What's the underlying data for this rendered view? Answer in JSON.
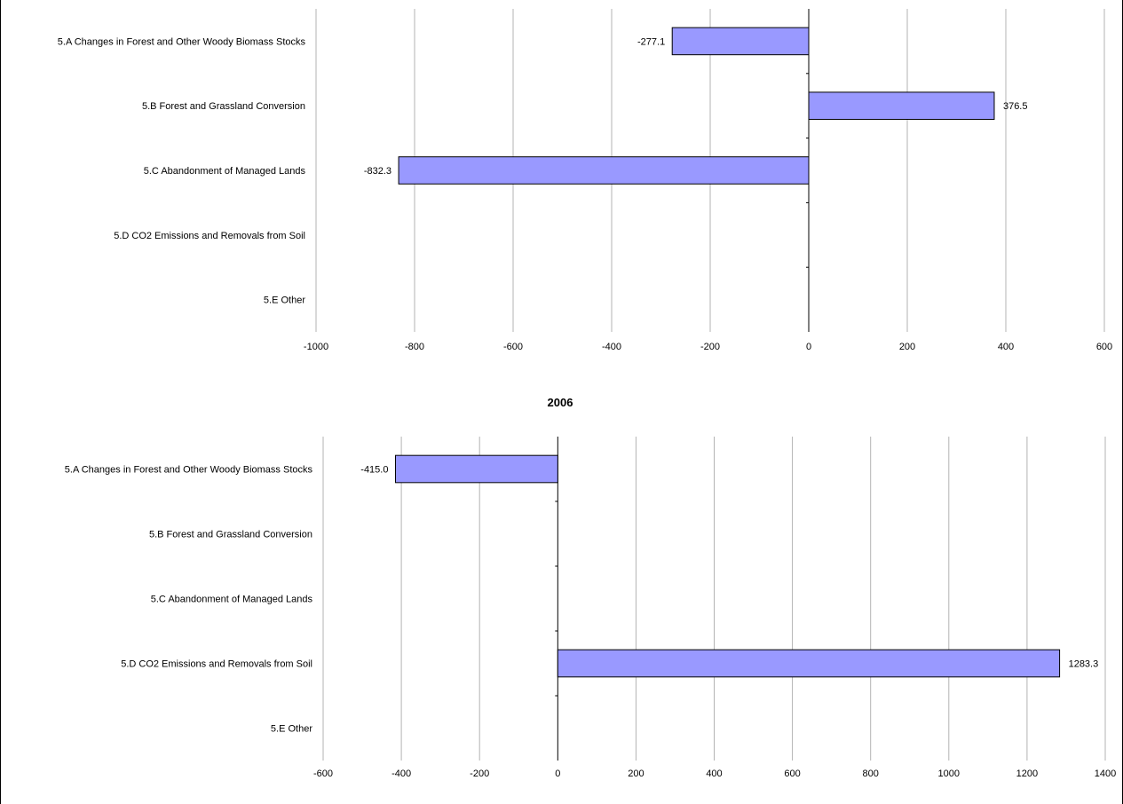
{
  "chart_data": [
    {
      "type": "bar",
      "orientation": "horizontal",
      "title": "",
      "categories": [
        "5.A Changes in Forest and Other Woody Biomass Stocks",
        "5.B Forest and Grassland Conversion",
        "5.C Abandonment of Managed Lands",
        "5.D CO2 Emissions and Removals from Soil",
        "5.E Other"
      ],
      "values": [
        -277.1,
        376.5,
        -832.3,
        null,
        null
      ],
      "data_labels": [
        "-277.1",
        "376.5",
        "-832.3",
        "",
        ""
      ],
      "xlim": [
        -1000,
        600
      ],
      "ticks": [
        -1000,
        -800,
        -600,
        -400,
        -200,
        0,
        200,
        400,
        600
      ],
      "grid": true,
      "bar_color": "#9999ff"
    },
    {
      "type": "bar",
      "orientation": "horizontal",
      "title": "2006",
      "categories": [
        "5.A Changes in Forest and Other Woody Biomass Stocks",
        "5.B Forest and Grassland Conversion",
        "5.C Abandonment of Managed Lands",
        "5.D CO2 Emissions and Removals from Soil",
        "5.E Other"
      ],
      "values": [
        -415.0,
        null,
        null,
        1283.3,
        null
      ],
      "data_labels": [
        "-415.0",
        "",
        "",
        "1283.3",
        ""
      ],
      "xlim": [
        -600,
        1400
      ],
      "ticks": [
        -600,
        -400,
        -200,
        0,
        200,
        400,
        600,
        800,
        1000,
        1200,
        1400
      ],
      "grid": true,
      "bar_color": "#9999ff"
    }
  ]
}
